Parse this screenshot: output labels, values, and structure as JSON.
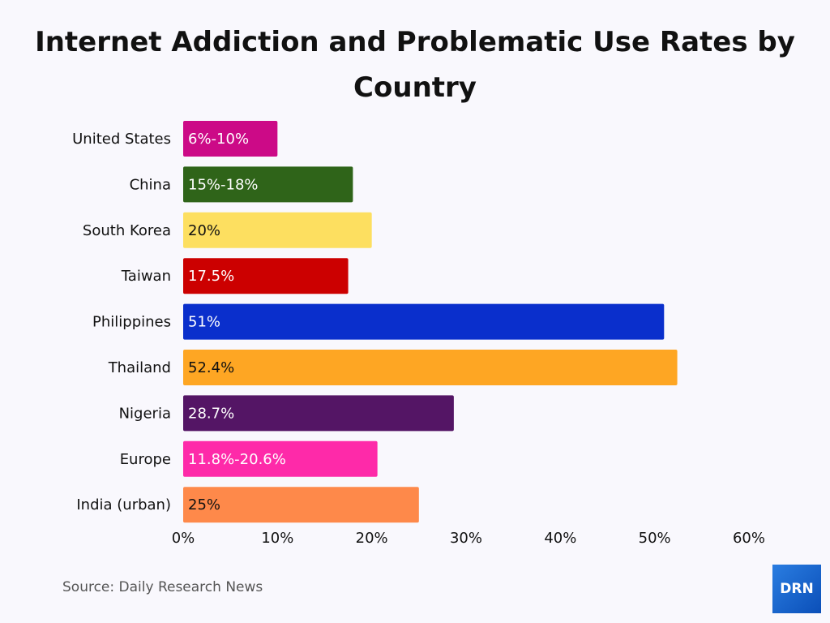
{
  "chart_data": {
    "type": "bar",
    "orientation": "horizontal",
    "title": "Internet Addiction and Problematic Use Rates by Country",
    "categories": [
      "United States",
      "China",
      "South Korea",
      "Taiwan",
      "Philippines",
      "Thailand",
      "Nigeria",
      "Europe",
      "India (urban)"
    ],
    "values": [
      10,
      18,
      20,
      17.5,
      51,
      52.4,
      28.7,
      20.6,
      25
    ],
    "data_labels": [
      "6%-10%",
      "15%-18%",
      "20%",
      "17.5%",
      "51%",
      "52.4%",
      "28.7%",
      "11.8%-20.6%",
      "25%"
    ],
    "colors": [
      "#cc0a87",
      "#2f6419",
      "#fddf60",
      "#cc0000",
      "#0a2fcc",
      "#fea623",
      "#541565",
      "#fe2aa9",
      "#fe894a"
    ],
    "label_colors": [
      "#ffffff",
      "#ffffff",
      "#111111",
      "#ffffff",
      "#ffffff",
      "#111111",
      "#ffffff",
      "#ffffff",
      "#111111"
    ],
    "xlim": [
      0,
      60
    ],
    "xticks": [
      "0%",
      "10%",
      "20%",
      "30%",
      "40%",
      "50%",
      "60%"
    ],
    "xtick_values": [
      0,
      10,
      20,
      30,
      40,
      50,
      60
    ],
    "grid": false,
    "xlabel": "",
    "ylabel": ""
  },
  "source": "Source: Daily Research News",
  "logo_text": "DRN"
}
